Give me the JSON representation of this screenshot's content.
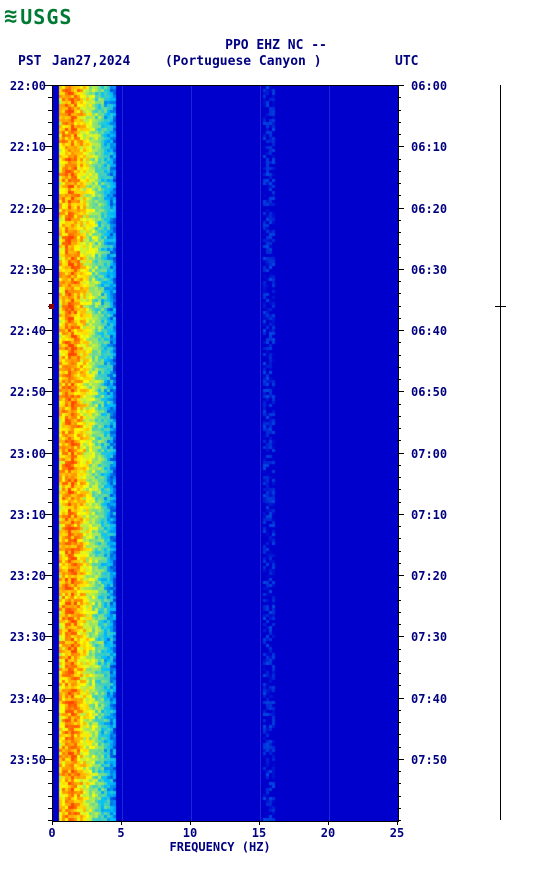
{
  "logo": {
    "wave": "≋",
    "text": "USGS"
  },
  "header": {
    "station": "PPO EHZ NC --",
    "tz_left": "PST",
    "date": "Jan27,2024",
    "subtitle": "(Portuguese Canyon )",
    "tz_right": "UTC"
  },
  "chart": {
    "type": "spectrogram",
    "xlabel": "FREQUENCY (HZ)",
    "xlim": [
      0,
      25
    ],
    "xtick_step": 5,
    "xticks": [
      0,
      5,
      10,
      15,
      20,
      25
    ],
    "left_ticks": [
      "22:00",
      "22:10",
      "22:20",
      "22:30",
      "22:40",
      "22:50",
      "23:00",
      "23:10",
      "23:20",
      "23:30",
      "23:40",
      "23:50"
    ],
    "right_ticks": [
      "06:00",
      "06:10",
      "06:20",
      "06:30",
      "06:40",
      "06:50",
      "07:00",
      "07:10",
      "07:20",
      "07:30",
      "07:40",
      "07:50"
    ],
    "colors": {
      "background": "#0000cd",
      "low": "#0000cd",
      "mid": "#00bfff",
      "high": "#ffff00",
      "peak": "#ff4500",
      "text": "#000080",
      "border": "#000000"
    },
    "red_marker_time_index": 3.6,
    "title_fontsize": 13,
    "label_fontsize": 12
  }
}
